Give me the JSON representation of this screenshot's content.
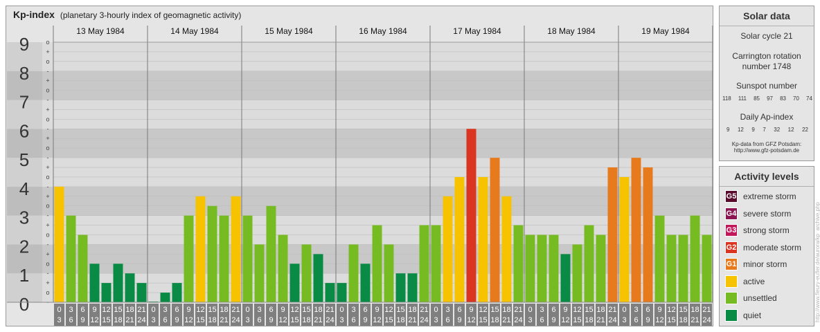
{
  "header": {
    "title": "Kp-index",
    "subtitle": "(planetary 3-hourly index of geomagnetic activity)"
  },
  "chart_data": {
    "type": "bar",
    "title": "Kp-index",
    "ylim": [
      0,
      9
    ],
    "y_ticks": [
      "0",
      "1",
      "2",
      "3",
      "4",
      "5",
      "6",
      "7",
      "8",
      "9"
    ],
    "minor_ticks": [
      "-",
      "o",
      "+"
    ],
    "days": [
      "13 May 1984",
      "14 May 1984",
      "15 May 1984",
      "16 May 1984",
      "17 May 1984",
      "18 May 1984",
      "19 May 1984"
    ],
    "hour_labels": [
      [
        "0",
        "3"
      ],
      [
        "3",
        "6"
      ],
      [
        "6",
        "9"
      ],
      [
        "9",
        "12"
      ],
      [
        "12",
        "15"
      ],
      [
        "15",
        "18"
      ],
      [
        "18",
        "21"
      ],
      [
        "21",
        "24"
      ]
    ],
    "values": [
      [
        4.0,
        3.0,
        2.333,
        1.333,
        0.667,
        1.333,
        1.0,
        0.667
      ],
      [
        0.0,
        0.333,
        0.667,
        3.0,
        3.667,
        3.333,
        3.0,
        3.667
      ],
      [
        3.0,
        2.0,
        3.333,
        2.333,
        1.333,
        2.0,
        1.667,
        0.667
      ],
      [
        0.667,
        2.0,
        1.333,
        2.667,
        2.0,
        1.0,
        1.0,
        2.667
      ],
      [
        2.667,
        3.667,
        4.333,
        6.0,
        4.333,
        5.0,
        3.667,
        2.667
      ],
      [
        2.333,
        2.333,
        2.333,
        1.667,
        2.0,
        2.667,
        2.333,
        4.667
      ],
      [
        4.333,
        5.0,
        4.667,
        3.0,
        2.333,
        2.333,
        3.0,
        2.333
      ]
    ]
  },
  "solar": {
    "title": "Solar data",
    "cycle": "Solar cycle 21",
    "carrington_label": "Carrington rotation",
    "carrington_number": "number 1748",
    "sunspot_label": "Sunspot number",
    "sunspot_values": [
      "118",
      "111",
      "85",
      "97",
      "83",
      "70",
      "74"
    ],
    "ap_label": "Daily Ap-index",
    "ap_values": [
      "9",
      "12",
      "9",
      "7",
      "32",
      "12",
      "22"
    ],
    "source_line1": "Kp-data from GFZ Potsdam:",
    "source_line2": "http://www.gfz-potsdam.de"
  },
  "levels": {
    "title": "Activity levels",
    "items": [
      {
        "code": "G5",
        "label": "extreme storm",
        "color": "#5a0a2a"
      },
      {
        "code": "G4",
        "label": "severe storm",
        "color": "#8a1550"
      },
      {
        "code": "G3",
        "label": "strong storm",
        "color": "#c2185b"
      },
      {
        "code": "G2",
        "label": "moderate storm",
        "color": "#d93520"
      },
      {
        "code": "G1",
        "label": "minor storm",
        "color": "#e87a1e"
      },
      {
        "code": "",
        "label": "active",
        "color": "#f7c300"
      },
      {
        "code": "",
        "label": "unsettled",
        "color": "#77bb22"
      },
      {
        "code": "",
        "label": "quiet",
        "color": "#098a45"
      }
    ]
  },
  "credit": "http://www.fleury-eufler.de/aurora/kp_archive.php"
}
